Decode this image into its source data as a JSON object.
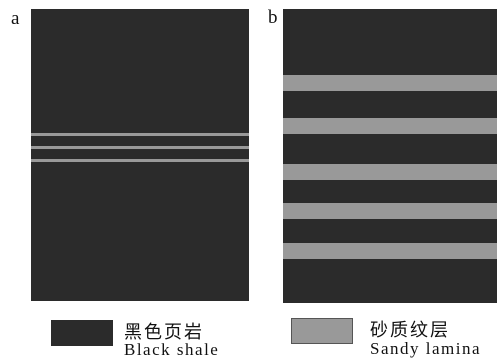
{
  "panels": {
    "a": {
      "label": "a",
      "fill": "#2b2b2b",
      "lamina_color": "#999999",
      "lamina_count": 3
    },
    "b": {
      "label": "b",
      "fill": "#2b2b2b",
      "lamina_color": "#999999",
      "lamina_count": 5
    }
  },
  "legend": {
    "black_shale": {
      "zh": "黑色页岩",
      "en": "Black shale",
      "color": "#2b2b2b"
    },
    "sandy_lamina": {
      "zh": "砂质纹层",
      "en": "Sandy lamina",
      "color": "#999999"
    }
  }
}
